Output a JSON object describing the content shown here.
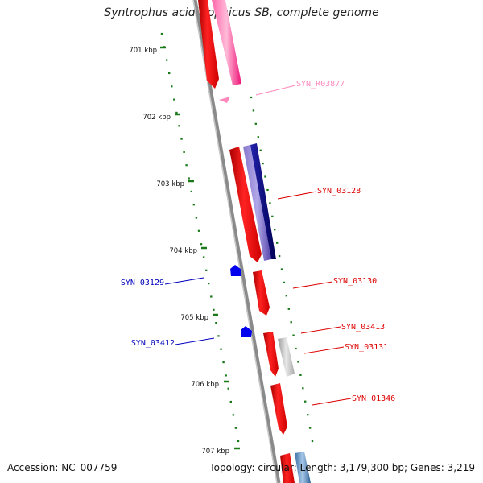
{
  "title": "Syntrophus aciditrophicus SB, complete genome",
  "accession": "Accession: NC_007759",
  "summary": "Topology: circular; Length: 3,179,300 bp; Genes: 3,219",
  "colors": {
    "backbone": "#8a8a8a",
    "tick": "#1a7a1a",
    "forward_gene": "#ee1111",
    "forward_cds": "#ee1177",
    "rrna_pink": "#ff88bb",
    "reverse_blue": "#0000ee",
    "purple_cds": "#6655bb",
    "navy_cds": "#111177",
    "gray_gene": "#b8b8b8",
    "steel_blue": "#4a7fb5"
  },
  "ticks": [
    "701 kbp",
    "702 kbp",
    "703 kbp",
    "704 kbp",
    "705 kbp",
    "706 kbp",
    "707 kbp"
  ],
  "gene_labels": [
    {
      "name": "SYN_R03877",
      "color": "#ff88bb"
    },
    {
      "name": "SYN_03128",
      "color": "#dd0000"
    },
    {
      "name": "SYN_03130",
      "color": "#dd0000"
    },
    {
      "name": "SYN_03129",
      "color": "#0000bb"
    },
    {
      "name": "SYN_03413",
      "color": "#dd0000"
    },
    {
      "name": "SYN_03131",
      "color": "#dd0000"
    },
    {
      "name": "SYN_03412",
      "color": "#0000bb"
    },
    {
      "name": "SYN_01346",
      "color": "#dd0000"
    }
  ]
}
